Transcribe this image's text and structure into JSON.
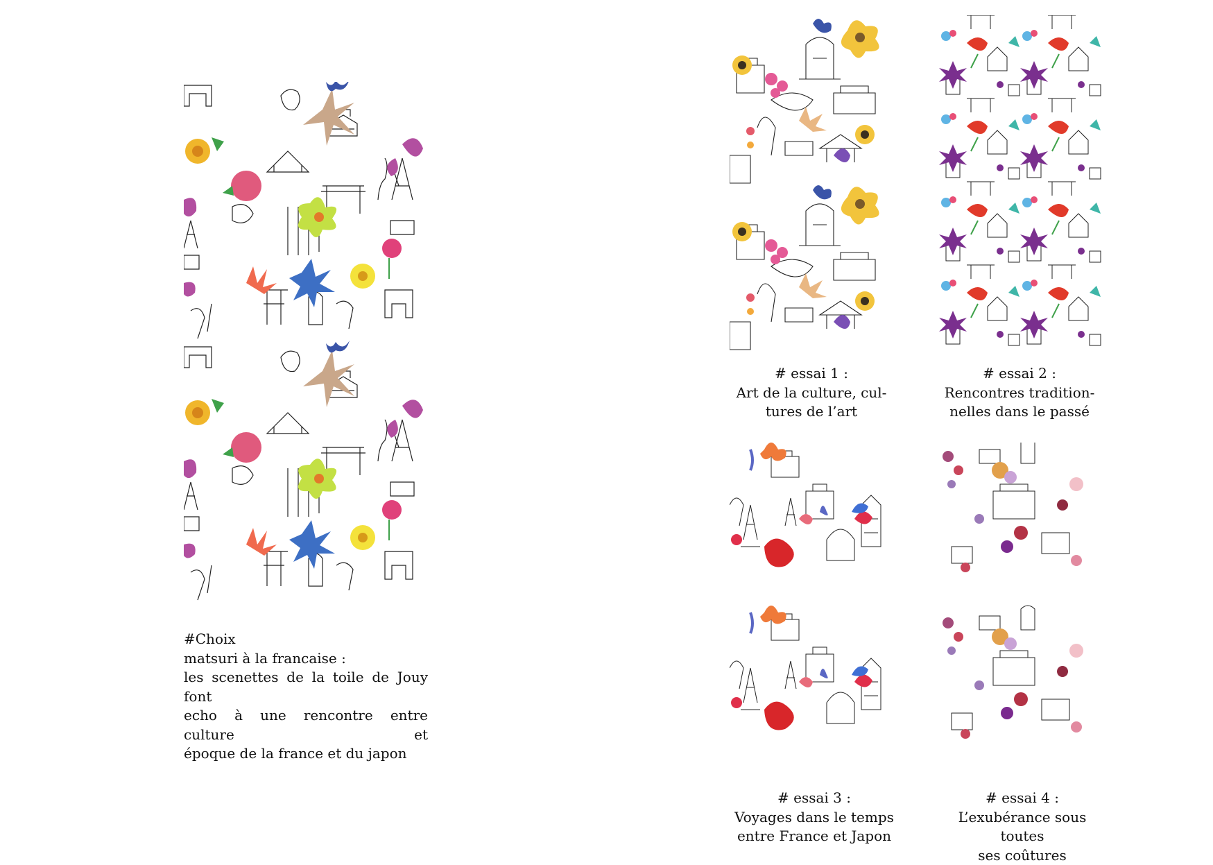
{
  "choice": {
    "heading": "#Choix",
    "title": "matsuri à la francaise :",
    "body_line1": "les scenettes de la toile de Jouy font",
    "body_line2": "echo à une rencontre entre culture et",
    "body_line3": "époque de la france et du japon"
  },
  "essais": [
    {
      "label": "# essai 1 :",
      "line1": "Art de la culture, cul-",
      "line2": "tures de l’art"
    },
    {
      "label": "# essai 2 :",
      "line1": "Rencontres tradition-",
      "line2": "nelles dans le passé"
    },
    {
      "label": "# essai 3 :",
      "line1": "Voyages dans le temps",
      "line2": "entre France et Japon"
    },
    {
      "label": "# essai 4 :",
      "line1": "L’exubérance sous toutes",
      "line2": "ses coûtures"
    }
  ]
}
